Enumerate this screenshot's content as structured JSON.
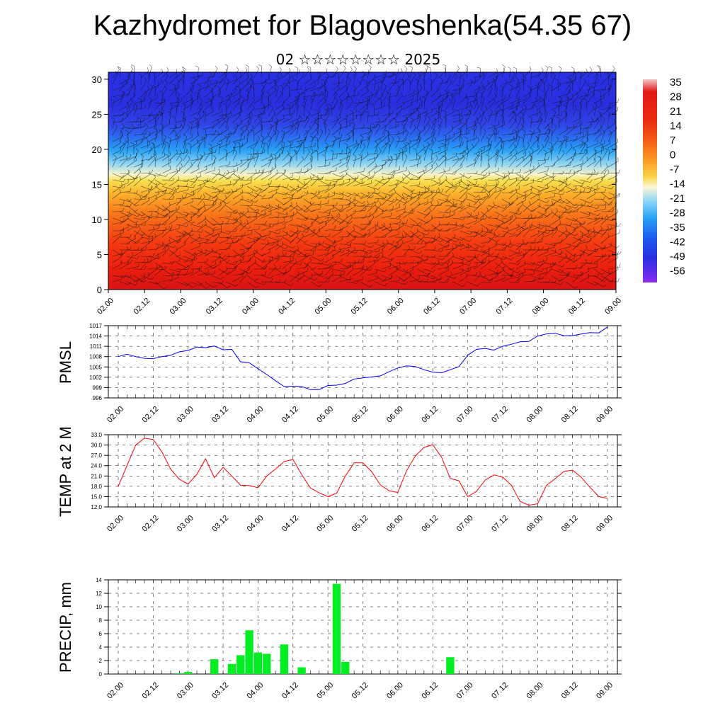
{
  "page": {
    "title": "Kazhydromet for Blagoveshenka(54.35 67)",
    "subtitle": "02 ☆☆☆☆☆☆☆☆ 2025"
  },
  "colors": {
    "pmsl_line": "#0000ff",
    "temp_line": "#ff0000",
    "precip_bar": "#00ee22",
    "grid": "#000000"
  },
  "chart_data": [
    {
      "type": "heatmap",
      "title": "",
      "xlabel": "",
      "ylabel": "",
      "x_ticks": [
        "02.00",
        "02.12",
        "03.00",
        "03.12",
        "04.00",
        "04.12",
        "05.00",
        "05.12",
        "06.00",
        "06.12",
        "07.00",
        "07.12",
        "08.00",
        "08.12",
        "09.00"
      ],
      "y_ticks": [
        "0",
        "5",
        "10",
        "15",
        "20",
        "25",
        "30"
      ],
      "ylim": [
        0,
        31
      ],
      "colorbar_labels": [
        "35",
        "28",
        "21",
        "14",
        "7",
        "0",
        "-7",
        "-14",
        "-21",
        "-28",
        "-35",
        "-42",
        "-49",
        "-56"
      ],
      "colorbar_colors": [
        "#f4b6b6",
        "#e81010",
        "#e81a10",
        "#f03a10",
        "#f86a16",
        "#fb9e26",
        "#f7d648",
        "#fff4c8",
        "#7fd4f4",
        "#2aa6f4",
        "#1a60f0",
        "#2436e8",
        "#3020d8",
        "#9030f0"
      ],
      "overlay": "wind barbs"
    },
    {
      "type": "line",
      "ylabel": "PMSL",
      "xlabel": "",
      "x_ticks": [
        "02.00",
        "02.12",
        "03.00",
        "03.12",
        "04.00",
        "04.12",
        "05.00",
        "05.12",
        "06.00",
        "06.12",
        "07.00",
        "07.12",
        "08.00",
        "08.12",
        "09.00"
      ],
      "y_ticks": [
        "1017",
        "1014",
        "1011",
        "1008",
        "1005",
        "1002",
        "999",
        "996"
      ],
      "ylim": [
        996,
        1017
      ],
      "series": [
        {
          "values": [
            1008.0,
            1008.7,
            1008.0,
            1007.5,
            1007.4,
            1008.0,
            1008.4,
            1009.4,
            1009.8,
            1010.8,
            1010.6,
            1011.1,
            1010.0,
            1010.1,
            1006.5,
            1006.2,
            1004.5,
            1002.8,
            1001.0,
            999.3,
            999.4,
            999.3,
            998.4,
            998.4,
            999.6,
            999.7,
            1000.2,
            1001.5,
            1001.8,
            1002.1,
            1002.4,
            1003.6,
            1004.7,
            1005.3,
            1005.1,
            1004.2,
            1003.5,
            1003.3,
            1004.2,
            1005.1,
            1008.4,
            1010.1,
            1010.4,
            1009.9,
            1011.0,
            1011.6,
            1012.3,
            1012.4,
            1014.0,
            1014.6,
            1014.8,
            1014.1,
            1014.1,
            1014.6,
            1015.0,
            1014.9,
            1016.6
          ]
        }
      ]
    },
    {
      "type": "line",
      "ylabel": "TEMP at 2 M",
      "xlabel": "",
      "x_ticks": [
        "02.00",
        "02.12",
        "03.00",
        "03.12",
        "04.00",
        "04.12",
        "05.00",
        "05.12",
        "06.00",
        "06.12",
        "07.00",
        "07.12",
        "08.00",
        "08.12",
        "09.00"
      ],
      "y_ticks": [
        "33.0",
        "30.0",
        "27.0",
        "24.0",
        "21.0",
        "18.0",
        "15.0",
        "12.0"
      ],
      "ylim": [
        12,
        33
      ],
      "series": [
        {
          "values": [
            18.0,
            24.0,
            30.0,
            32.0,
            31.6,
            28.0,
            23.0,
            20.0,
            18.7,
            21.5,
            26.0,
            20.5,
            23.5,
            21.0,
            18.3,
            18.2,
            17.6,
            21.0,
            23.0,
            25.2,
            25.8,
            21.4,
            17.5,
            16.1,
            15.0,
            16.0,
            21.0,
            24.8,
            24.8,
            22.3,
            18.4,
            16.7,
            16.2,
            22.5,
            26.8,
            29.3,
            30.1,
            26.5,
            20.3,
            19.6,
            15.0,
            16.5,
            19.8,
            21.3,
            20.7,
            18.3,
            13.6,
            12.5,
            12.9,
            18.2,
            20.2,
            22.3,
            22.7,
            20.6,
            17.7,
            15.0,
            14.5
          ]
        }
      ]
    },
    {
      "type": "bar",
      "ylabel": "PRECIP, mm",
      "xlabel": "",
      "x_ticks": [
        "02.00",
        "02.12",
        "03.00",
        "03.12",
        "04.00",
        "04.12",
        "05.00",
        "05.12",
        "06.00",
        "06.12",
        "07.00",
        "07.12",
        "08.00",
        "08.12",
        "09.00"
      ],
      "y_ticks": [
        "14",
        "12",
        "10",
        "8",
        "6",
        "4",
        "2",
        "0"
      ],
      "ylim": [
        0,
        14
      ],
      "values": [
        0,
        0,
        0,
        0,
        0,
        0,
        0,
        0.1,
        0.3,
        0,
        0,
        2.2,
        0,
        1.5,
        2.8,
        6.5,
        3.2,
        3.0,
        0,
        4.4,
        0,
        1.0,
        0,
        0,
        0,
        13.4,
        1.8,
        0,
        0,
        0,
        0,
        0,
        0,
        0,
        0,
        0,
        0,
        0,
        2.5,
        0,
        0,
        0,
        0,
        0,
        0,
        0,
        0,
        0,
        0,
        0,
        0,
        0,
        0,
        0,
        0,
        0,
        0
      ]
    }
  ]
}
